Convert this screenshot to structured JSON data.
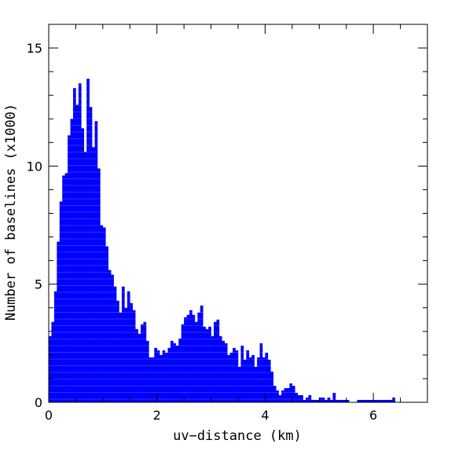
{
  "chart_data": {
    "type": "bar",
    "xlabel": "uv−distance (km)",
    "ylabel": "Number of baselines (x1000)",
    "xlim": [
      0,
      7
    ],
    "ylim": [
      0,
      16
    ],
    "x_ticks": [
      0,
      2,
      4,
      6
    ],
    "y_ticks": [
      0,
      5,
      10,
      15
    ],
    "x_tick_labels": [
      "0",
      "2",
      "4",
      "6"
    ],
    "y_tick_labels": [
      "0",
      "5",
      "10",
      "15"
    ],
    "bin_width": 0.05,
    "bin_start": 0.0,
    "bar_color": "#0000ff",
    "values": [
      2.8,
      3.4,
      4.7,
      6.8,
      8.5,
      9.6,
      9.7,
      11.3,
      12.0,
      13.3,
      12.6,
      13.5,
      11.6,
      10.6,
      13.7,
      12.5,
      10.8,
      11.9,
      9.9,
      7.5,
      7.4,
      6.6,
      5.6,
      5.4,
      4.9,
      4.3,
      3.8,
      4.9,
      4.0,
      4.7,
      4.2,
      3.9,
      3.1,
      2.9,
      3.3,
      3.4,
      2.6,
      1.9,
      1.9,
      2.3,
      2.2,
      2.0,
      2.2,
      2.1,
      2.3,
      2.6,
      2.5,
      2.4,
      2.7,
      3.3,
      3.6,
      3.7,
      3.9,
      3.7,
      3.4,
      3.8,
      4.1,
      3.2,
      3.1,
      3.2,
      2.8,
      3.4,
      3.5,
      2.8,
      2.6,
      2.5,
      2.0,
      2.1,
      2.3,
      2.2,
      1.5,
      2.4,
      1.8,
      2.2,
      1.9,
      2.0,
      1.5,
      1.9,
      2.5,
      1.9,
      2.1,
      1.8,
      1.3,
      0.7,
      0.5,
      0.3,
      0.5,
      0.6,
      0.6,
      0.8,
      0.7,
      0.4,
      0.3,
      0.3,
      0.1,
      0.2,
      0.3,
      0.1,
      0.1,
      0.1,
      0.2,
      0.2,
      0.1,
      0.2,
      0.1,
      0.4,
      0.1,
      0.1,
      0.1,
      0.1,
      0.1,
      0.0,
      0.0,
      0.0,
      0.1,
      0.1,
      0.1,
      0.1,
      0.1,
      0.1,
      0.1,
      0.1,
      0.1,
      0.1,
      0.1,
      0.1,
      0.1,
      0.2,
      0.0,
      0.0,
      0.0,
      0.0,
      0.0,
      0.0,
      0.0,
      0.0,
      0.0,
      0.0,
      0.0,
      0.0,
      0.0,
      0.0,
      0.0,
      0.0,
      0.0,
      0.0,
      0.0
    ]
  }
}
